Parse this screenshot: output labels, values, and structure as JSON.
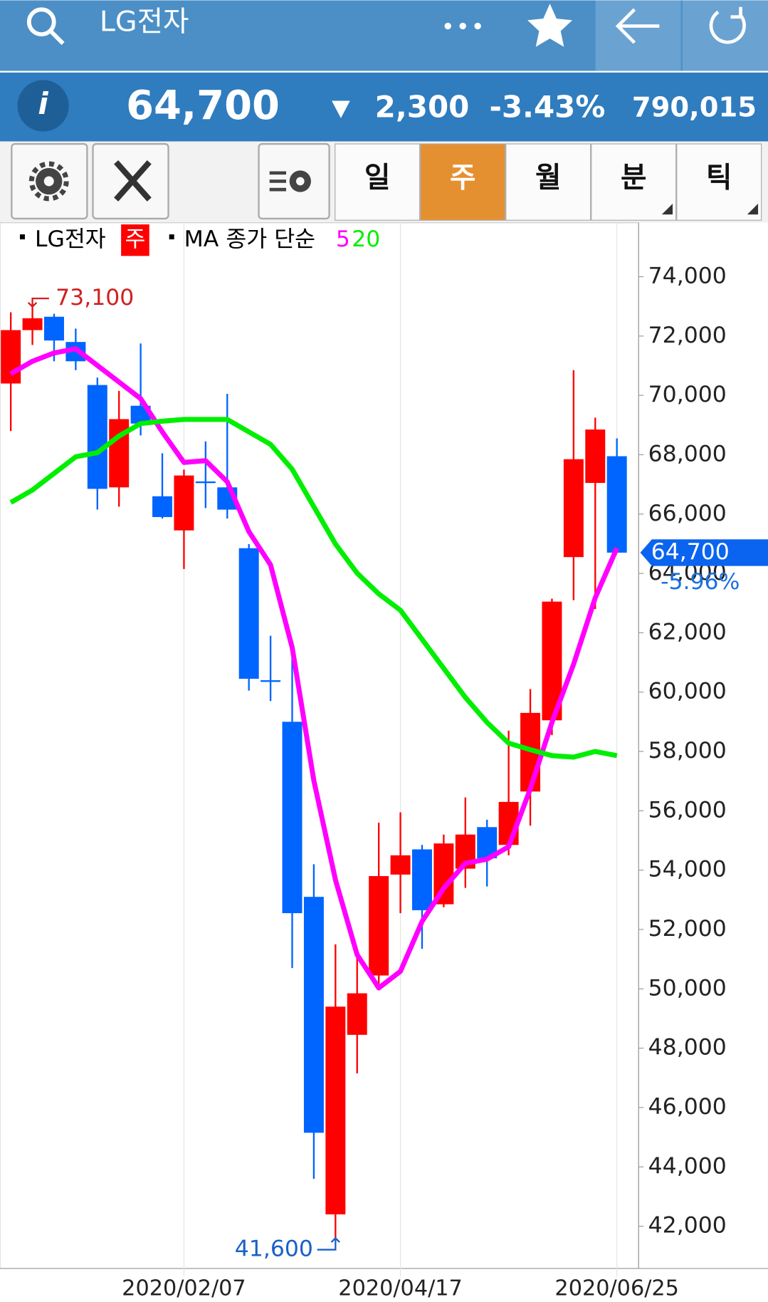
{
  "header": {
    "title": "LG전자",
    "price": "64,700",
    "change": "2,300",
    "change_pct": "-3.43%",
    "volume": "790,015"
  },
  "toolbar": {
    "tabs": [
      "일",
      "주",
      "월",
      "분",
      "틱"
    ],
    "active_tab": 1
  },
  "legend": {
    "stock": "LG전자",
    "period": "주",
    "ma_label": "MA 종가 단순"
  },
  "chart_data": {
    "type": "candlestick",
    "categories": [
      null,
      null,
      null,
      null,
      null,
      null,
      null,
      null,
      "2020/02/07",
      null,
      null,
      null,
      null,
      null,
      null,
      null,
      null,
      null,
      "2020/04/17",
      null,
      null,
      null,
      null,
      null,
      null,
      null,
      null,
      null,
      "2020/06/25"
    ],
    "open": [
      70400,
      72200,
      72650,
      71800,
      70350,
      66900,
      69650,
      66600,
      65450,
      67100,
      66900,
      64850,
      60400,
      59000,
      53100,
      42400,
      48450,
      50450,
      53850,
      54700,
      52850,
      54050,
      55450,
      54850,
      56650,
      59050,
      64550,
      67050,
      67950
    ],
    "high": [
      72800,
      73100,
      72750,
      72250,
      70600,
      70150,
      71750,
      68050,
      67500,
      68450,
      70050,
      64990,
      61900,
      61400,
      54200,
      51500,
      51150,
      55600,
      55950,
      54850,
      55200,
      56450,
      55700,
      58700,
      60100,
      63150,
      70850,
      69250,
      68550
    ],
    "low": [
      68800,
      71700,
      71150,
      70850,
      66150,
      66250,
      68650,
      65850,
      64150,
      66200,
      65850,
      60050,
      59700,
      50700,
      43600,
      41600,
      47150,
      50050,
      52550,
      51350,
      52750,
      53400,
      53450,
      54500,
      55500,
      58550,
      63100,
      62800,
      64700
    ],
    "close": [
      72200,
      72600,
      71850,
      71150,
      66850,
      69200,
      69050,
      65900,
      67300,
      67050,
      66150,
      60450,
      60350,
      52550,
      45150,
      49400,
      49850,
      53800,
      54500,
      52650,
      54900,
      55200,
      54400,
      56300,
      59300,
      63050,
      67850,
      68850,
      64700
    ],
    "up_color": "#ff0000",
    "down_color": "#0064ff",
    "series": [
      {
        "name": "5",
        "color": "#ff00ff",
        "values": [
          70730,
          71150,
          71430,
          71570,
          71010,
          70450,
          69890,
          68770,
          67740,
          67800,
          67090,
          65410,
          64290,
          61500,
          57020,
          53670,
          51150,
          50030,
          50590,
          52270,
          53390,
          54230,
          54370,
          54790,
          56740,
          58980,
          60940,
          63180,
          64850
        ]
      },
      {
        "name": "20",
        "color": "#00ee00",
        "values": [
          66390,
          66810,
          67370,
          67930,
          68070,
          68630,
          69050,
          69130,
          69190,
          69190,
          69190,
          68770,
          68350,
          67510,
          66250,
          64990,
          64010,
          63310,
          62760,
          61780,
          60800,
          59820,
          58980,
          58280,
          58060,
          57860,
          57810,
          58000,
          57860
        ]
      }
    ],
    "ylim": [
      40576,
      75818
    ],
    "yticks": [
      {
        "value": 42000,
        "label": "42,000"
      },
      {
        "value": 44000,
        "label": "44,000"
      },
      {
        "value": 46000,
        "label": "46,000"
      },
      {
        "value": 48000,
        "label": "48,000"
      },
      {
        "value": 50000,
        "label": "50,000"
      },
      {
        "value": 52000,
        "label": "52,000"
      },
      {
        "value": 54000,
        "label": "54,000"
      },
      {
        "value": 56000,
        "label": "56,000"
      },
      {
        "value": 58000,
        "label": "58,000"
      },
      {
        "value": 60000,
        "label": "60,000"
      },
      {
        "value": 62000,
        "label": "62,000"
      },
      {
        "value": 64000,
        "label": "64,000"
      },
      {
        "value": 66000,
        "label": "66,000"
      },
      {
        "value": 68000,
        "label": "68,000"
      },
      {
        "value": 70000,
        "label": "70,000"
      },
      {
        "value": 72000,
        "label": "72,000"
      },
      {
        "value": 74000,
        "label": "74,000"
      }
    ],
    "high_mark": {
      "value": 73100,
      "label": "73,100"
    },
    "low_mark": {
      "value": 41600,
      "label": "41,600"
    },
    "last_price": {
      "value": 64700,
      "label": "64,700"
    },
    "last_change": "-5.96%"
  }
}
